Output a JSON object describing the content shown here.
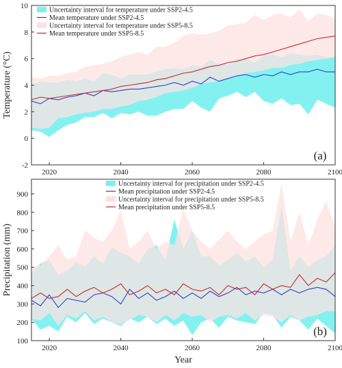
{
  "figure": {
    "xlabel": "Year",
    "x_ticks": [
      2020,
      2040,
      2060,
      2080,
      2100
    ]
  },
  "chart_data": [
    {
      "type": "area",
      "panel_label": "(a)",
      "ylabel": "Temperature (°C)",
      "xlim": [
        2015,
        2100
      ],
      "ylim": [
        -2,
        10
      ],
      "y_ticks": [
        -2,
        0,
        2,
        4,
        6,
        8,
        10
      ],
      "x": [
        2015,
        2017.5,
        2020,
        2022.5,
        2025,
        2027.5,
        2030,
        2032.5,
        2035,
        2037.5,
        2040,
        2042.5,
        2045,
        2047.5,
        2050,
        2052.5,
        2055,
        2057.5,
        2060,
        2062.5,
        2065,
        2067.5,
        2070,
        2072.5,
        2075,
        2077.5,
        2080,
        2082.5,
        2085,
        2087.5,
        2090,
        2092.5,
        2095,
        2097.5,
        2100
      ],
      "legend_position": "top-left",
      "series": [
        {
          "name": "Uncertainty interval for temperature under SSP2-4.5",
          "kind": "band",
          "color": "#7df0f0",
          "lower": [
            0.6,
            0.5,
            0.1,
            0.6,
            1.0,
            1.2,
            1.6,
            1.6,
            1.9,
            1.5,
            1.9,
            1.8,
            2.0,
            1.7,
            1.7,
            2.0,
            2.2,
            2.2,
            2.8,
            2.3,
            2.0,
            3.0,
            3.2,
            3.5,
            3.1,
            3.5,
            2.8,
            2.6,
            3.0,
            2.5,
            2.6,
            1.8,
            2.9,
            2.6,
            2.3
          ],
          "upper": [
            4.0,
            4.3,
            4.2,
            4.2,
            4.4,
            4.3,
            4.5,
            4.3,
            4.9,
            4.8,
            4.5,
            4.8,
            4.8,
            4.8,
            5.0,
            5.2,
            5.3,
            5.2,
            5.5,
            5.4,
            5.9,
            5.6,
            5.6,
            6.0,
            6.0,
            5.7,
            6.2,
            6.3,
            6.1,
            6.4,
            6.3,
            6.2,
            6.3,
            6.1,
            6.2
          ]
        },
        {
          "name": "Mean temperature under SSP2-4.5",
          "kind": "line",
          "color": "#2b3fd0",
          "values": [
            2.8,
            2.6,
            3.0,
            2.9,
            3.1,
            3.2,
            3.4,
            3.2,
            3.6,
            3.5,
            3.6,
            3.7,
            3.7,
            3.8,
            3.9,
            4.0,
            4.2,
            4.0,
            4.3,
            4.1,
            4.6,
            4.3,
            4.5,
            4.7,
            4.8,
            4.6,
            4.8,
            4.7,
            5.0,
            4.8,
            5.0,
            5.0,
            5.2,
            5.0,
            5.0
          ]
        },
        {
          "name": "Uncertainty interval for temperature under SSP5-8.5",
          "kind": "band",
          "color": "#fde1e1",
          "lower": [
            0.8,
            0.7,
            0.8,
            1.5,
            1.6,
            1.8,
            1.9,
            2.0,
            2.2,
            2.2,
            2.4,
            2.5,
            2.8,
            2.9,
            3.1,
            3.4,
            3.5,
            3.6,
            3.8,
            4.1,
            4.2,
            4.3,
            4.5,
            4.7,
            4.9,
            5.0,
            5.1,
            5.3,
            5.3,
            5.5,
            5.6,
            5.8,
            5.9,
            6.0,
            6.1
          ],
          "upper": [
            4.6,
            4.5,
            4.7,
            4.7,
            4.9,
            5.0,
            5.4,
            5.5,
            5.6,
            5.8,
            6.1,
            6.3,
            6.5,
            6.3,
            6.9,
            6.9,
            7.2,
            7.7,
            7.9,
            7.8,
            7.9,
            8.1,
            8.5,
            8.6,
            8.7,
            9.3,
            8.9,
            9.3,
            9.4,
            9.1,
            9.7,
            8.8,
            9.4,
            9.3,
            9.0
          ]
        },
        {
          "name": "Mean temperature under SSP5-8.5",
          "kind": "line",
          "color": "#c82828",
          "values": [
            2.9,
            3.1,
            3.0,
            3.1,
            3.2,
            3.3,
            3.4,
            3.5,
            3.6,
            3.7,
            3.9,
            4.0,
            4.1,
            4.2,
            4.4,
            4.5,
            4.7,
            4.9,
            5.0,
            5.2,
            5.4,
            5.5,
            5.7,
            5.8,
            6.0,
            6.2,
            6.3,
            6.5,
            6.7,
            6.9,
            7.1,
            7.3,
            7.5,
            7.6,
            7.7
          ]
        }
      ]
    },
    {
      "type": "area",
      "panel_label": "(b)",
      "ylabel": "Precipitation (mm)",
      "xlim": [
        2015,
        2100
      ],
      "ylim": [
        100,
        980
      ],
      "y_ticks": [
        100,
        200,
        300,
        400,
        500,
        600,
        700,
        800,
        900
      ],
      "x": [
        2015,
        2017.5,
        2020,
        2022.5,
        2025,
        2027.5,
        2030,
        2032.5,
        2035,
        2037.5,
        2040,
        2042.5,
        2045,
        2047.5,
        2050,
        2052.5,
        2055,
        2057.5,
        2060,
        2062.5,
        2065,
        2067.5,
        2070,
        2072.5,
        2075,
        2077.5,
        2080,
        2082.5,
        2085,
        2087.5,
        2090,
        2092.5,
        2095,
        2097.5,
        2100
      ],
      "legend_position": "top-center",
      "series": [
        {
          "name": "Uncertainty interval for precipitation under SSP2-4.5",
          "kind": "band",
          "color": "#7df0f0",
          "lower": [
            220,
            160,
            180,
            150,
            230,
            200,
            250,
            190,
            220,
            200,
            180,
            220,
            200,
            230,
            190,
            220,
            180,
            210,
            130,
            200,
            220,
            170,
            230,
            210,
            200,
            190,
            250,
            240,
            170,
            230,
            210,
            160,
            220,
            180,
            140
          ],
          "upper": [
            470,
            520,
            540,
            460,
            480,
            530,
            500,
            560,
            520,
            610,
            580,
            560,
            520,
            600,
            620,
            540,
            760,
            600,
            700,
            560,
            560,
            510,
            540,
            580,
            530,
            560,
            500,
            540,
            840,
            480,
            560,
            500,
            540,
            560,
            620
          ]
        },
        {
          "name": "Mean precipitation under SSP2-4.5",
          "kind": "line",
          "color": "#2b3fd0",
          "values": [
            320,
            290,
            350,
            280,
            330,
            320,
            310,
            350,
            360,
            340,
            300,
            380,
            330,
            360,
            320,
            340,
            370,
            330,
            360,
            330,
            370,
            340,
            360,
            390,
            350,
            370,
            360,
            380,
            350,
            380,
            360,
            380,
            390,
            380,
            340
          ]
        },
        {
          "name": "Uncertainty interval for precipitation under SSP5-8.5",
          "kind": "band",
          "color": "#fde1e1",
          "lower": [
            220,
            210,
            250,
            180,
            240,
            220,
            260,
            210,
            230,
            200,
            190,
            210,
            240,
            230,
            200,
            240,
            210,
            250,
            230,
            240,
            200,
            230,
            240,
            220,
            250,
            210,
            240,
            230,
            200,
            240,
            210,
            230,
            240,
            260,
            260
          ],
          "upper": [
            500,
            510,
            560,
            620,
            540,
            560,
            700,
            660,
            640,
            700,
            810,
            600,
            640,
            700,
            600,
            640,
            620,
            820,
            700,
            640,
            600,
            650,
            700,
            640,
            600,
            640,
            680,
            700,
            960,
            640,
            800,
            620,
            760,
            860,
            720
          ]
        },
        {
          "name": "Mean precipitation under SSP5-8.5",
          "kind": "line",
          "color": "#c82828",
          "values": [
            330,
            360,
            330,
            340,
            380,
            340,
            370,
            390,
            360,
            380,
            410,
            350,
            370,
            400,
            360,
            380,
            350,
            410,
            380,
            370,
            390,
            350,
            400,
            380,
            390,
            350,
            410,
            380,
            400,
            390,
            460,
            400,
            440,
            420,
            470
          ]
        }
      ]
    }
  ]
}
